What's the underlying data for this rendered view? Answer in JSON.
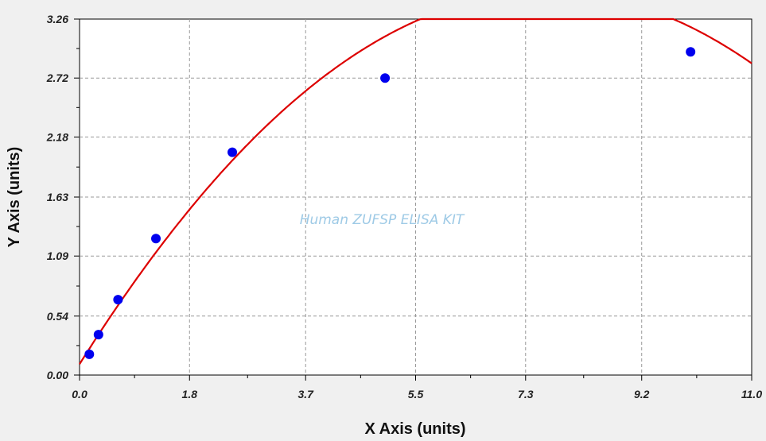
{
  "chart_data": {
    "type": "scatter",
    "xlabel": "X Axis (units)",
    "ylabel": "Y Axis (units)",
    "watermark": "Human ZUFSP ELISA KIT",
    "xlim": [
      0,
      11.0
    ],
    "ylim": [
      0,
      3.26
    ],
    "x_ticks": [
      0.0,
      1.8,
      3.7,
      5.5,
      7.3,
      9.2,
      11.0
    ],
    "x_tick_labels": [
      "0.0",
      "1.8",
      "3.7",
      "5.5",
      "7.3",
      "9.2",
      "11.0"
    ],
    "y_ticks": [
      0.0,
      0.54,
      1.09,
      1.63,
      2.18,
      2.72,
      3.26
    ],
    "y_tick_labels": [
      "0.00",
      "0.54",
      "1.09",
      "1.63",
      "2.18",
      "2.72",
      "3.26"
    ],
    "grid": true,
    "series": [
      {
        "kind": "points",
        "color": "#0000ee",
        "x": [
          0.16,
          0.31,
          0.63,
          1.25,
          2.5,
          5.0,
          10.0
        ],
        "y": [
          0.19,
          0.37,
          0.69,
          1.25,
          2.04,
          2.72,
          2.96
        ]
      },
      {
        "kind": "fit-curve",
        "color": "#dd0000",
        "model": "quadratic",
        "coefficients": {
          "a": -0.0583,
          "b": 0.8917,
          "c": 0.1
        }
      }
    ]
  }
}
